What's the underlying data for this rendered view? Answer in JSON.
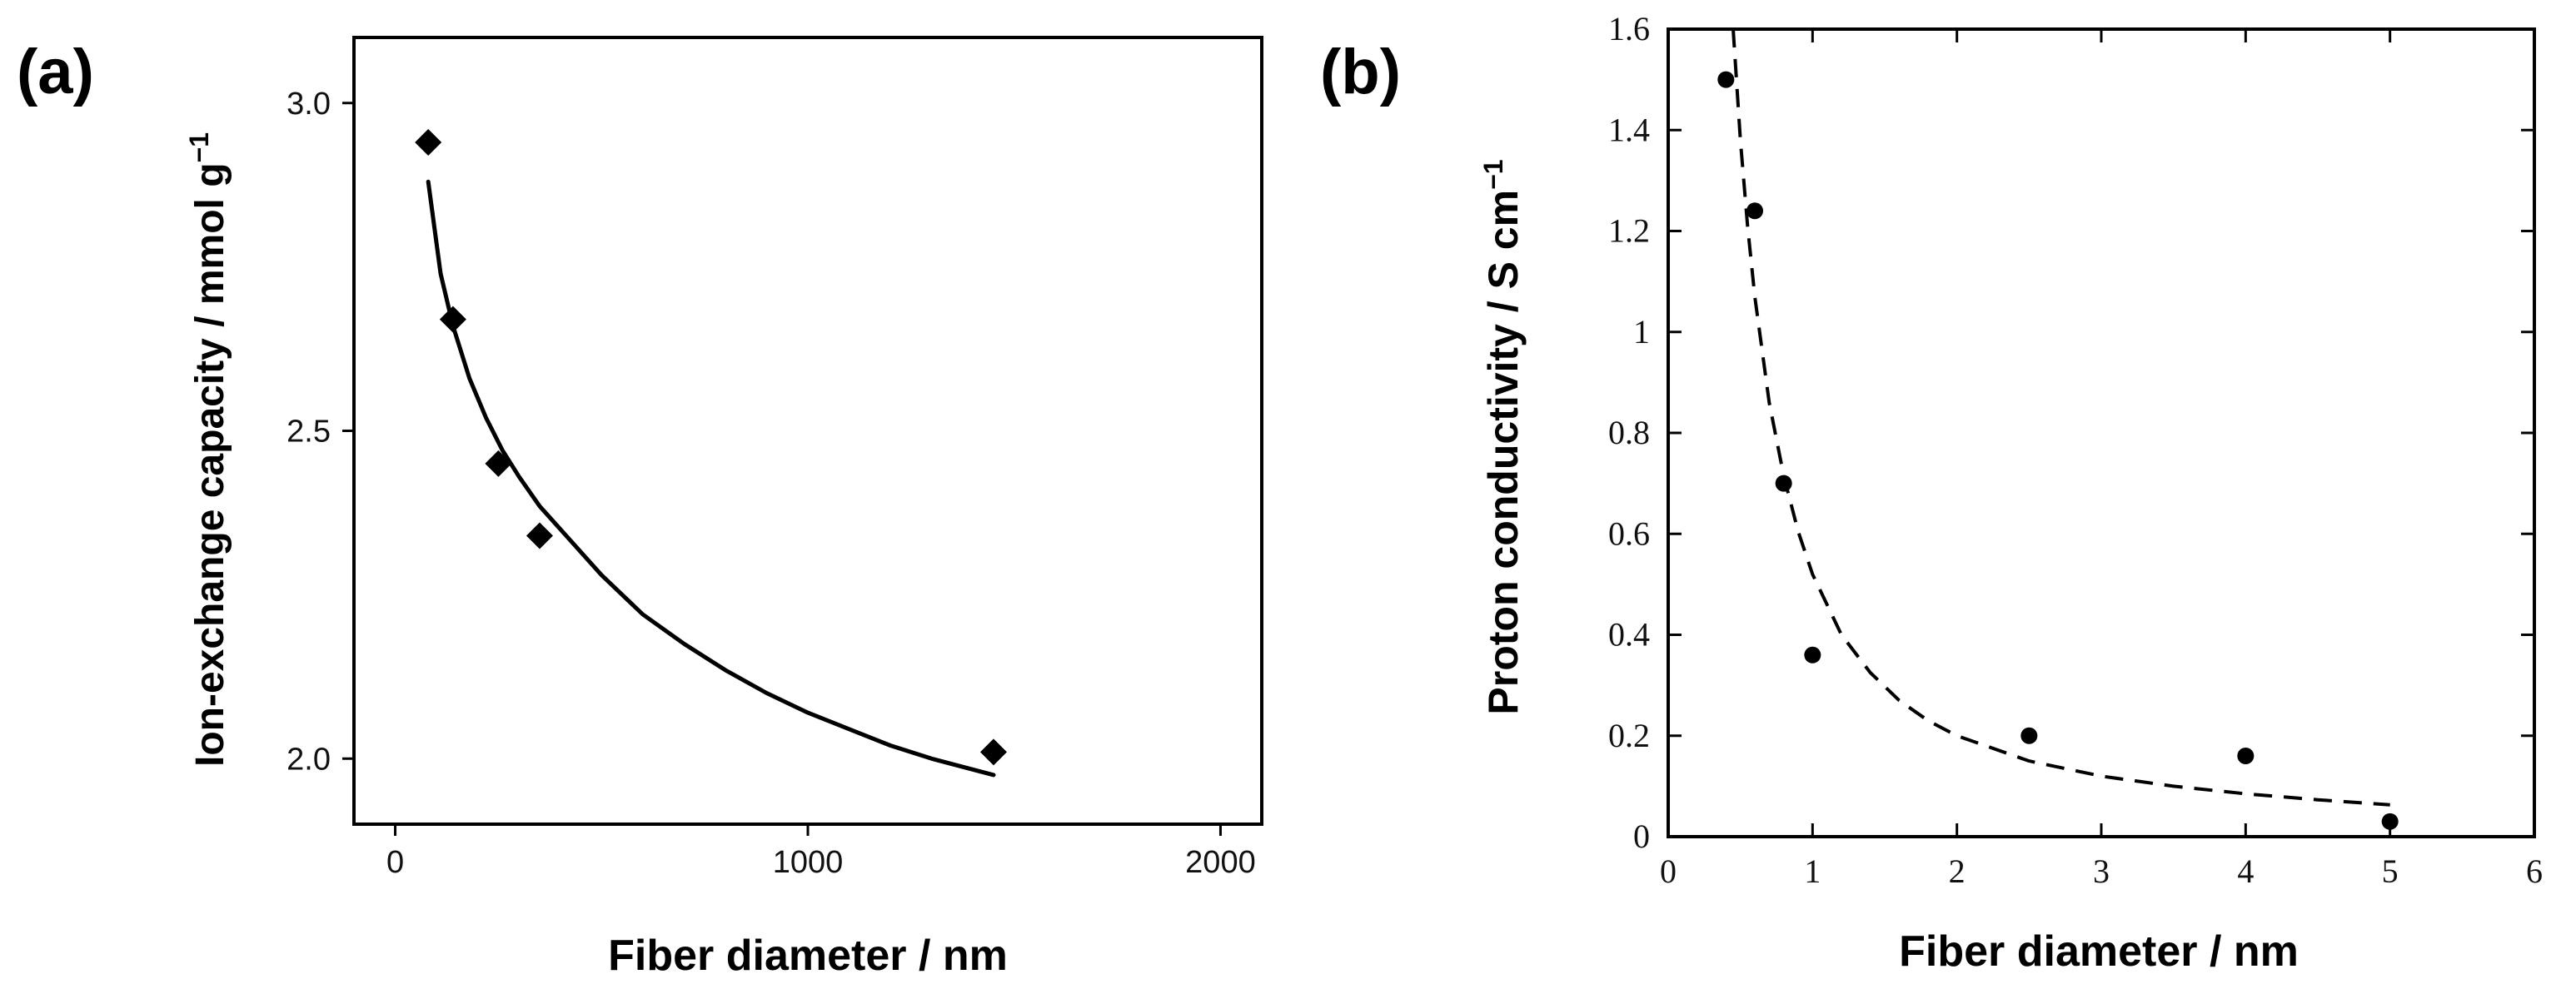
{
  "chart_data": [
    {
      "panel": "(a)",
      "type": "scatter",
      "marker": "diamond",
      "xlabel": "Fiber diameter / nm",
      "ylabel_main": "Ion-exchange capacity / mmol g",
      "ylabel_sup": "−1",
      "xlim": [
        -100,
        2100
      ],
      "ylim": [
        1.9,
        3.1
      ],
      "xticks": [
        0,
        1000,
        2000
      ],
      "xtick_labels": [
        "0",
        "1000",
        "2000"
      ],
      "yticks": [
        2.0,
        2.5,
        3.0
      ],
      "ytick_labels": [
        "2.0",
        "2.5",
        "3.0"
      ],
      "grid": false,
      "points": [
        {
          "x": 80,
          "y": 2.94
        },
        {
          "x": 140,
          "y": 2.67
        },
        {
          "x": 250,
          "y": 2.45
        },
        {
          "x": 350,
          "y": 2.34
        },
        {
          "x": 1450,
          "y": 2.01
        }
      ],
      "fit": {
        "style": "solid",
        "x": [
          80,
          110,
          140,
          180,
          220,
          260,
          300,
          350,
          400,
          500,
          600,
          700,
          800,
          900,
          1000,
          1100,
          1200,
          1300,
          1450
        ],
        "y": [
          2.88,
          2.74,
          2.66,
          2.58,
          2.52,
          2.47,
          2.43,
          2.385,
          2.35,
          2.28,
          2.22,
          2.175,
          2.135,
          2.1,
          2.07,
          2.045,
          2.02,
          2.0,
          1.975
        ]
      }
    },
    {
      "panel": "(b)",
      "type": "scatter",
      "marker": "circle",
      "xlabel": "Fiber diameter / nm",
      "ylabel_main": "Proton conductivity / S cm",
      "ylabel_sup": "−1",
      "xlim": [
        0,
        6
      ],
      "ylim": [
        0,
        1.6
      ],
      "xticks": [
        0,
        1,
        2,
        3,
        4,
        5,
        6
      ],
      "xtick_labels": [
        "0",
        "1",
        "2",
        "3",
        "4",
        "5",
        "6"
      ],
      "yticks": [
        0,
        0.2,
        0.4,
        0.6,
        0.8,
        1.0,
        1.2,
        1.4,
        1.6
      ],
      "ytick_labels": [
        "0",
        "0.2",
        "0.4",
        "0.6",
        "0.8",
        "1",
        "1.2",
        "1.4",
        "1.6"
      ],
      "grid": false,
      "points": [
        {
          "x": 0.4,
          "y": 1.5
        },
        {
          "x": 0.6,
          "y": 1.24
        },
        {
          "x": 0.8,
          "y": 0.7
        },
        {
          "x": 1.0,
          "y": 0.36
        },
        {
          "x": 2.5,
          "y": 0.2
        },
        {
          "x": 4.0,
          "y": 0.16
        },
        {
          "x": 5.0,
          "y": 0.03
        }
      ],
      "fit": {
        "style": "dashed",
        "x": [
          0.45,
          0.5,
          0.55,
          0.6,
          0.7,
          0.8,
          0.9,
          1.0,
          1.2,
          1.4,
          1.6,
          1.8,
          2.0,
          2.5,
          3.0,
          3.5,
          4.0,
          4.5,
          5.0
        ],
        "y": [
          1.6,
          1.38,
          1.21,
          1.07,
          0.86,
          0.715,
          0.605,
          0.52,
          0.4,
          0.325,
          0.27,
          0.23,
          0.2,
          0.15,
          0.12,
          0.1,
          0.085,
          0.073,
          0.063
        ]
      }
    }
  ]
}
